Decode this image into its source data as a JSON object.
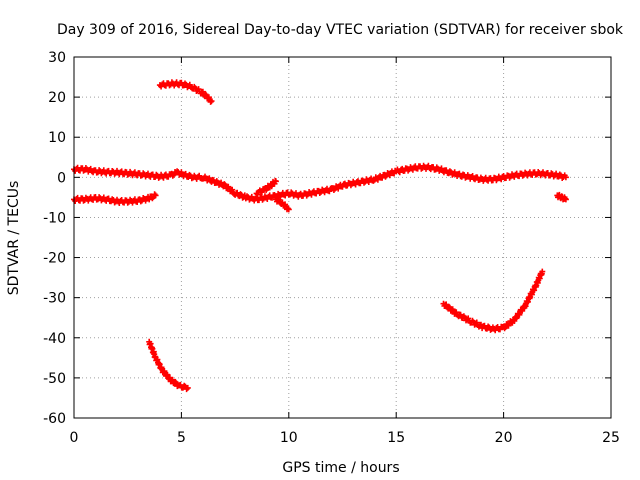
{
  "chart_data": {
    "type": "scatter",
    "title": "Day 309 of 2016, Sidereal Day-to-day VTEC variation (SDTVAR) for receiver sbok",
    "xlabel": "GPS time / hours",
    "ylabel": "SDTVAR / TECUs",
    "xlim": [
      0,
      25
    ],
    "ylim": [
      -60,
      30
    ],
    "xticks": [
      0,
      5,
      10,
      15,
      20,
      25
    ],
    "yticks": [
      -60,
      -50,
      -40,
      -30,
      -20,
      -10,
      0,
      10,
      20,
      30
    ],
    "xtick_labels": [
      "0",
      "5",
      "10",
      "15",
      "20",
      "25"
    ],
    "ytick_labels": [
      "-60",
      "-50",
      "-40",
      "-30",
      "-20",
      "-10",
      "0",
      "10",
      "20",
      "30"
    ],
    "grid": true,
    "marker_color": "#ff0000",
    "series": [
      {
        "name": "arc-main",
        "x": [
          0,
          0.5,
          1,
          1.5,
          2,
          2.5,
          3,
          3.5,
          4,
          4.5,
          4.8,
          5.2,
          5.6,
          6,
          6.5,
          7,
          7.5,
          8,
          8.5,
          9,
          9.5,
          10,
          10.5,
          11,
          11.5,
          12,
          12.5,
          13,
          13.5,
          14,
          14.5,
          15,
          15.5,
          16,
          16.5,
          17,
          17.5,
          18,
          18.5,
          19,
          19.5,
          20,
          20.5,
          21,
          21.5,
          22,
          22.5,
          22.9
        ],
        "y": [
          2,
          2,
          1.5,
          1.3,
          1.2,
          1,
          0.8,
          0.5,
          0.2,
          0.5,
          1.2,
          0.5,
          0,
          0,
          -1,
          -2,
          -4,
          -5,
          -5.5,
          -5,
          -4.5,
          -4,
          -4.5,
          -4,
          -3.5,
          -3,
          -2,
          -1.5,
          -1,
          -0.5,
          0.5,
          1.5,
          2,
          2.5,
          2.5,
          2,
          1.2,
          0.5,
          0,
          -0.5,
          -0.5,
          0,
          0.5,
          0.8,
          1,
          0.8,
          0.5,
          0
        ]
      },
      {
        "name": "arc-low-left",
        "x": [
          0,
          0.5,
          1,
          1.5,
          2,
          2.5,
          3,
          3.5,
          3.8
        ],
        "y": [
          -5.5,
          -5.5,
          -5.2,
          -5.5,
          -6,
          -6,
          -5.8,
          -5.2,
          -4.5
        ]
      },
      {
        "name": "arc-top",
        "x": [
          4,
          4.5,
          5,
          5.5,
          6,
          6.4
        ],
        "y": [
          23,
          23.3,
          23.3,
          22.5,
          21,
          19
        ]
      },
      {
        "name": "arc-bottom-left",
        "x": [
          3.5,
          3.8,
          4.1,
          4.5,
          4.9,
          5.3
        ],
        "y": [
          -41,
          -45,
          -48,
          -50.5,
          -52,
          -52.5
        ]
      },
      {
        "name": "arc-bottom-right",
        "x": [
          17.2,
          17.8,
          18.5,
          19,
          19.5,
          20,
          20.5,
          21,
          21.5,
          21.8
        ],
        "y": [
          -31.5,
          -34,
          -36,
          -37.2,
          -37.8,
          -37.5,
          -35.5,
          -32,
          -27,
          -23.5
        ]
      },
      {
        "name": "branch-9h",
        "x": [
          8.5,
          8.9,
          9.2,
          9.4
        ],
        "y": [
          -4,
          -3,
          -1.8,
          -1
        ]
      },
      {
        "name": "branch-10h",
        "x": [
          9.4,
          9.7,
          10
        ],
        "y": [
          -5.5,
          -6.5,
          -8
        ]
      },
      {
        "name": "tail-23h",
        "x": [
          22.5,
          22.7,
          22.9
        ],
        "y": [
          -4.5,
          -5,
          -5.5
        ]
      }
    ]
  }
}
